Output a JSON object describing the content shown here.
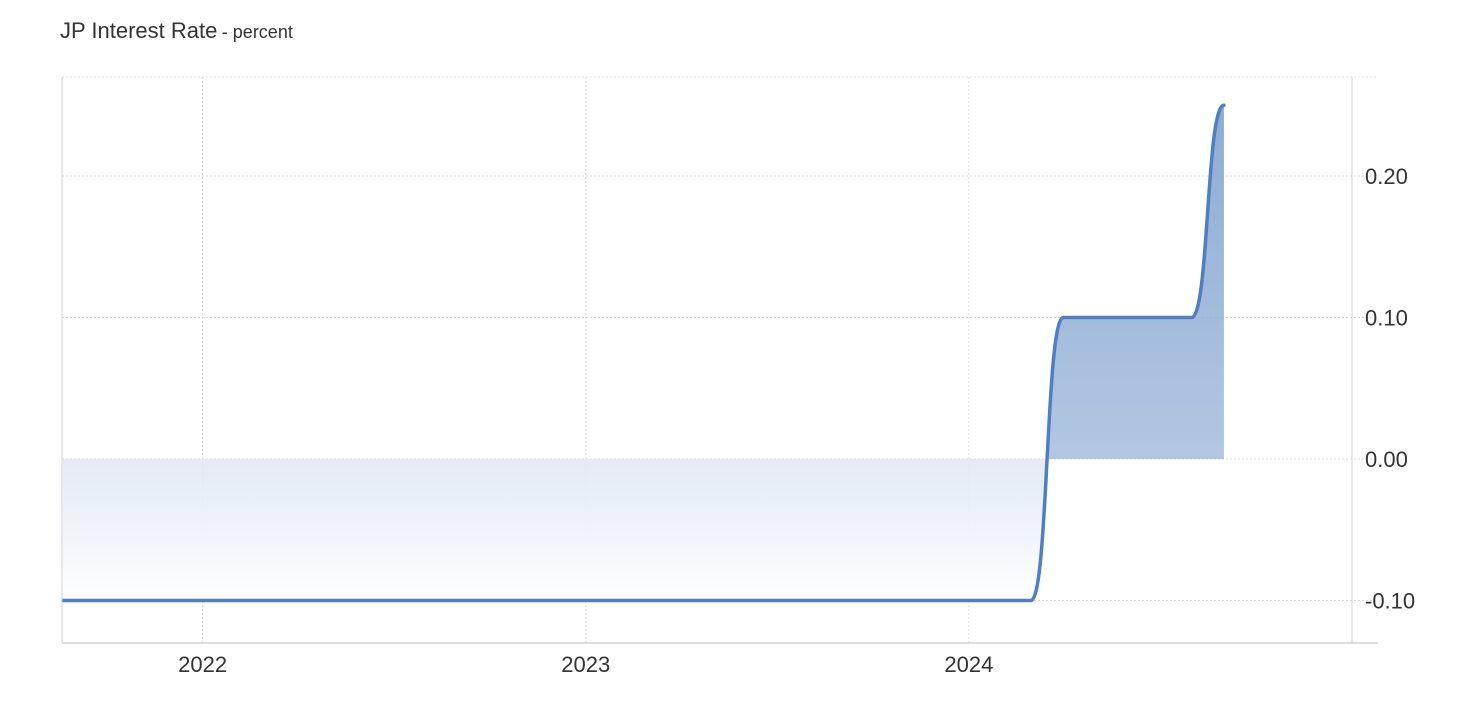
{
  "chart_data": {
    "type": "area",
    "title": "JP Interest Rate",
    "subtitle": "- percent",
    "xlabel": "",
    "ylabel": "",
    "x_ticks": [
      "2022",
      "2023",
      "2024"
    ],
    "y_ticks": [
      "0.20",
      "0.10",
      "0.00",
      "-0.10"
    ],
    "ylim": [
      -0.13,
      0.27
    ],
    "xlim": [
      "2021-08-20",
      "2024-12-31"
    ],
    "grid": true,
    "legend": "none",
    "series": [
      {
        "x": [
          "2021-08-31",
          "2024-02-29",
          "2024-03-31",
          "2024-06-30",
          "2024-07-31",
          "2024-08-31"
        ],
        "values": [
          -0.1,
          -0.1,
          0.1,
          0.1,
          0.1,
          0.25
        ]
      }
    ],
    "colors": {
      "line": "#4f7fc0",
      "fill_top": "#8eacd4",
      "fill_bottom": "#ffffff",
      "grid": "#d9d9d9",
      "axis": "#d0d0d0"
    }
  }
}
